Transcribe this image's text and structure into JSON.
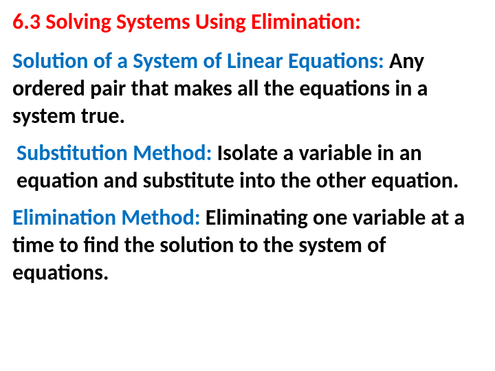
{
  "colors": {
    "title": "#ff0000",
    "term": "#0070c0",
    "body": "#000000",
    "background": "#ffffff"
  },
  "typography": {
    "title_fontsize": 32,
    "body_fontsize": 32,
    "font_weight": "bold",
    "font_family": "Calibri"
  },
  "title": "6.3 Solving Systems Using Elimination:",
  "definitions": [
    {
      "term": "Solution of  a System of Linear Equations:",
      "description": " Any ordered pair that makes all the equations in a system true."
    },
    {
      "term": "Substitution Method:",
      "description": " Isolate a variable in an equation and substitute into the other equation."
    },
    {
      "term": "Elimination Method:",
      "description": " Eliminating one variable at a time to find the solution to the system of equations."
    }
  ]
}
